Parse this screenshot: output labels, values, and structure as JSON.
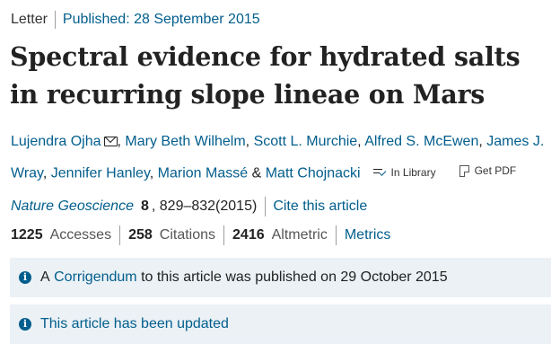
{
  "article": {
    "type": "Letter",
    "published": "Published: 28 September 2015",
    "title": "Spectral evidence for hydrated salts in recurring slope lineae on Mars"
  },
  "authors": {
    "list": [
      {
        "name": "Lujendra Ojha",
        "suffix": ""
      },
      {
        "name": "Mary Beth Wilhelm",
        "suffix": ","
      },
      {
        "name": "Scott L. Murchie",
        "suffix": ","
      },
      {
        "name": "Alfred S. McEwen",
        "suffix": ","
      },
      {
        "name": "James J. Wray",
        "suffix": ","
      },
      {
        "name": "Jennifer Hanley",
        "suffix": ","
      },
      {
        "name": "Marion Massé",
        "suffix": " &"
      },
      {
        "name": "Matt Chojnacki",
        "suffix": ""
      }
    ],
    "in_library": "In Library",
    "get_pdf": "Get PDF"
  },
  "citation": {
    "journal": "Nature Geoscience",
    "volume": "8",
    "pages": ", 829–832(2015)",
    "cite_link": "Cite this article"
  },
  "metrics": {
    "accesses_count": "1225",
    "accesses_label": "Accesses",
    "citations_count": "258",
    "citations_label": "Citations",
    "altmetric_count": "2416",
    "altmetric_label": "Altmetric",
    "metrics_link": "Metrics"
  },
  "notices": {
    "corrigendum_prefix": "A",
    "corrigendum_link": "Corrigendum",
    "corrigendum_suffix": "to this article was published on 29 October 2015",
    "updated": "This article has been updated"
  },
  "icons": {
    "mail": "mail-icon",
    "library": "library-icon",
    "pdf": "pdf-icon",
    "info": "info-icon"
  },
  "colors": {
    "link": "#025e8d",
    "notice_bg": "#ebf1f5",
    "text": "#222222"
  }
}
